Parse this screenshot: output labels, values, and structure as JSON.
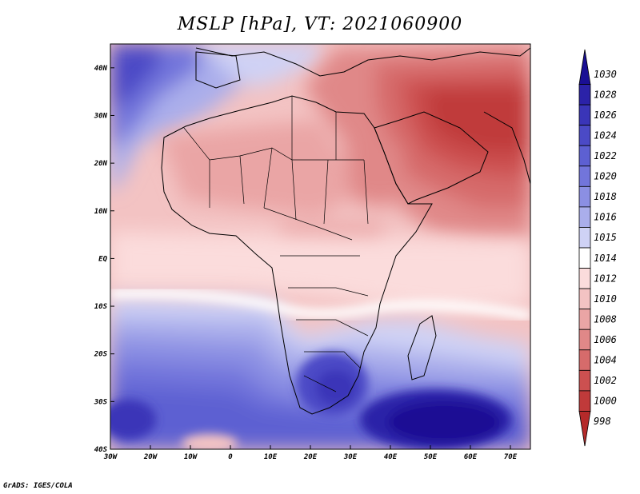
{
  "title": "MSLP [hPa], VT: 2021060900",
  "credit": "GrADS: IGES/COLA",
  "map": {
    "lon_range": [
      -30,
      75
    ],
    "lat_range": [
      -40,
      45
    ],
    "lon_ticks": [
      {
        "value": -30,
        "label": "30W"
      },
      {
        "value": -20,
        "label": "20W"
      },
      {
        "value": -10,
        "label": "10W"
      },
      {
        "value": 0,
        "label": "0"
      },
      {
        "value": 10,
        "label": "10E"
      },
      {
        "value": 20,
        "label": "20E"
      },
      {
        "value": 30,
        "label": "30E"
      },
      {
        "value": 40,
        "label": "40E"
      },
      {
        "value": 50,
        "label": "50E"
      },
      {
        "value": 60,
        "label": "60E"
      },
      {
        "value": 70,
        "label": "70E"
      }
    ],
    "lat_ticks": [
      {
        "value": 40,
        "label": "40N"
      },
      {
        "value": 30,
        "label": "30N"
      },
      {
        "value": 20,
        "label": "20N"
      },
      {
        "value": 10,
        "label": "10N"
      },
      {
        "value": 0,
        "label": "EQ"
      },
      {
        "value": -10,
        "label": "10S"
      },
      {
        "value": -20,
        "label": "20S"
      },
      {
        "value": -30,
        "label": "30S"
      },
      {
        "value": -40,
        "label": "40S"
      }
    ]
  },
  "colorbar": {
    "levels": [
      {
        "label": "1030",
        "color": "#1a0f94"
      },
      {
        "label": "1028",
        "color": "#2b22a8"
      },
      {
        "label": "1026",
        "color": "#3a35b8"
      },
      {
        "label": "1024",
        "color": "#4b4ac6"
      },
      {
        "label": "1022",
        "color": "#5d60d2"
      },
      {
        "label": "1020",
        "color": "#7275db"
      },
      {
        "label": "1018",
        "color": "#8b8fe3"
      },
      {
        "label": "1016",
        "color": "#aaaeeb"
      },
      {
        "label": "1015",
        "color": "#cfd2f5"
      },
      {
        "label": "1014",
        "color": "#ffffff"
      },
      {
        "label": "1012",
        "color": "#fbdcdc"
      },
      {
        "label": "1010",
        "color": "#f3c3c3"
      },
      {
        "label": "1008",
        "color": "#eaa5a5"
      },
      {
        "label": "1006",
        "color": "#e08888"
      },
      {
        "label": "1004",
        "color": "#d66b6b"
      },
      {
        "label": "1002",
        "color": "#cc5050"
      },
      {
        "label": "1000",
        "color": "#c03a3a"
      },
      {
        "label": "998",
        "color": "#b52a2a"
      }
    ]
  }
}
